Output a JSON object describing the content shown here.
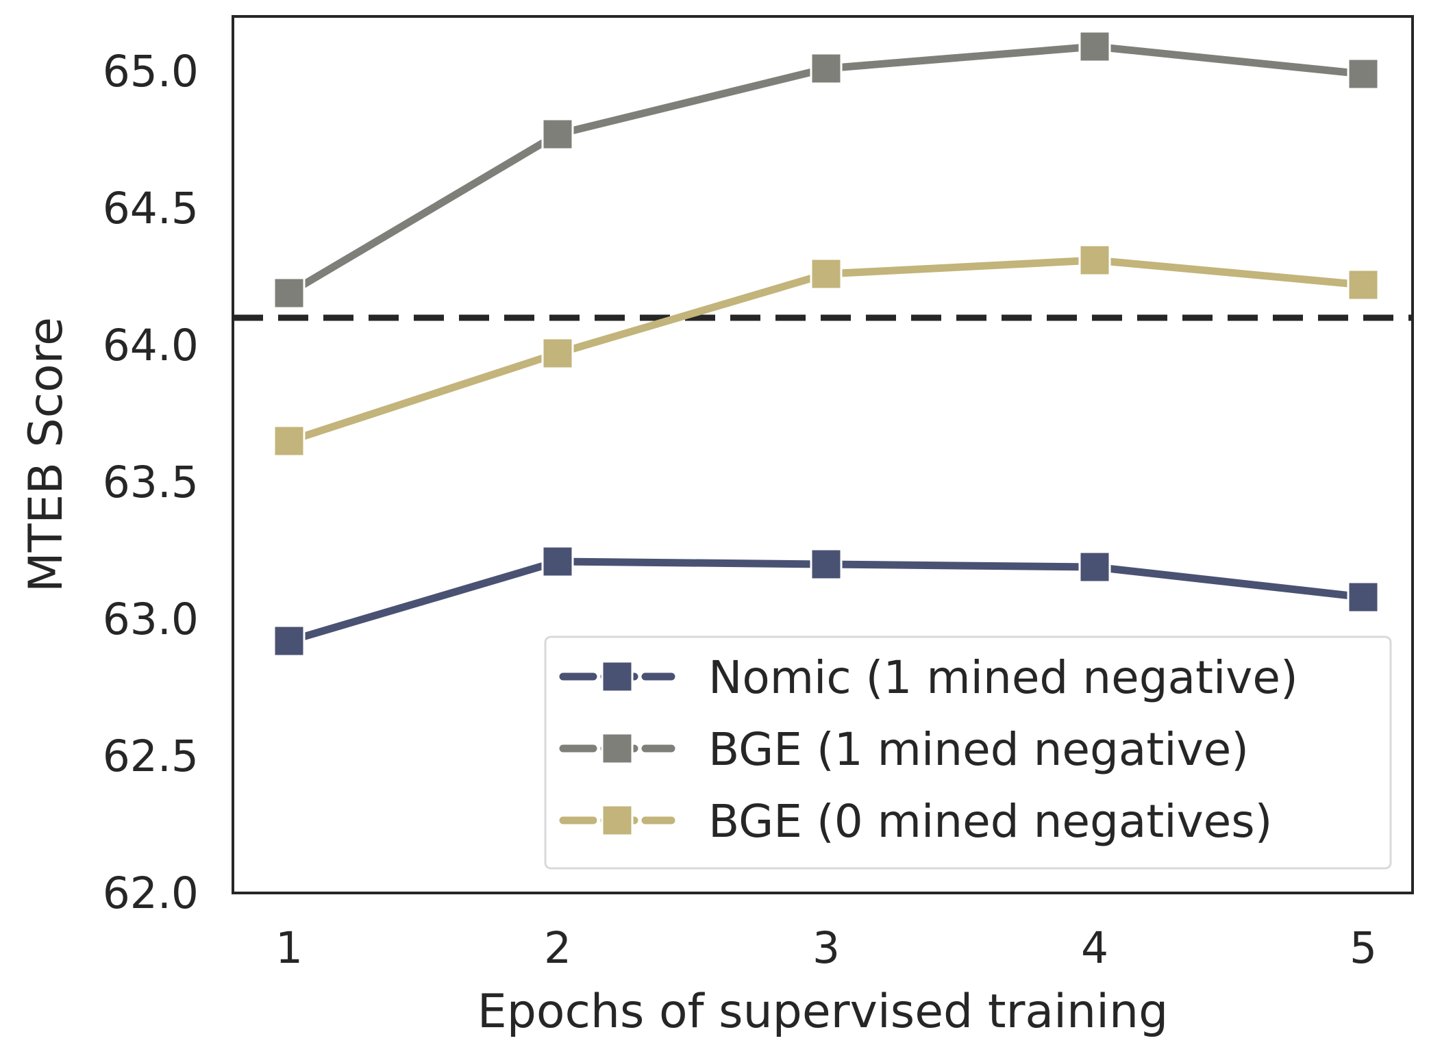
{
  "chart_data": {
    "type": "line",
    "title": "",
    "xlabel": "Epochs of supervised training",
    "ylabel": "MTEB Score",
    "x": [
      1,
      2,
      3,
      4,
      5
    ],
    "x_tick_labels": [
      "1",
      "2",
      "3",
      "4",
      "5"
    ],
    "ylim": [
      62.0,
      65.2
    ],
    "y_ticks": [
      62.0,
      62.5,
      63.0,
      63.5,
      64.0,
      64.5,
      65.0
    ],
    "y_tick_labels": [
      "62.0",
      "62.5",
      "63.0",
      "63.5",
      "64.0",
      "64.5",
      "65.0"
    ],
    "grid": false,
    "legend_position": "lower-right",
    "reference_line": {
      "y": 64.1,
      "style": "dashed",
      "color": "#262626"
    },
    "series": [
      {
        "name": "Nomic (1 mined negative)",
        "color": "#4a5273",
        "values": [
          62.92,
          63.21,
          63.2,
          63.19,
          63.08
        ]
      },
      {
        "name": "BGE (1 mined negative)",
        "color": "#7f7f7a",
        "values": [
          64.19,
          64.77,
          65.01,
          65.09,
          64.99
        ]
      },
      {
        "name": "BGE (0 mined negatives)",
        "color": "#c2b47a",
        "values": [
          63.65,
          63.97,
          64.26,
          64.31,
          64.22
        ]
      }
    ]
  }
}
